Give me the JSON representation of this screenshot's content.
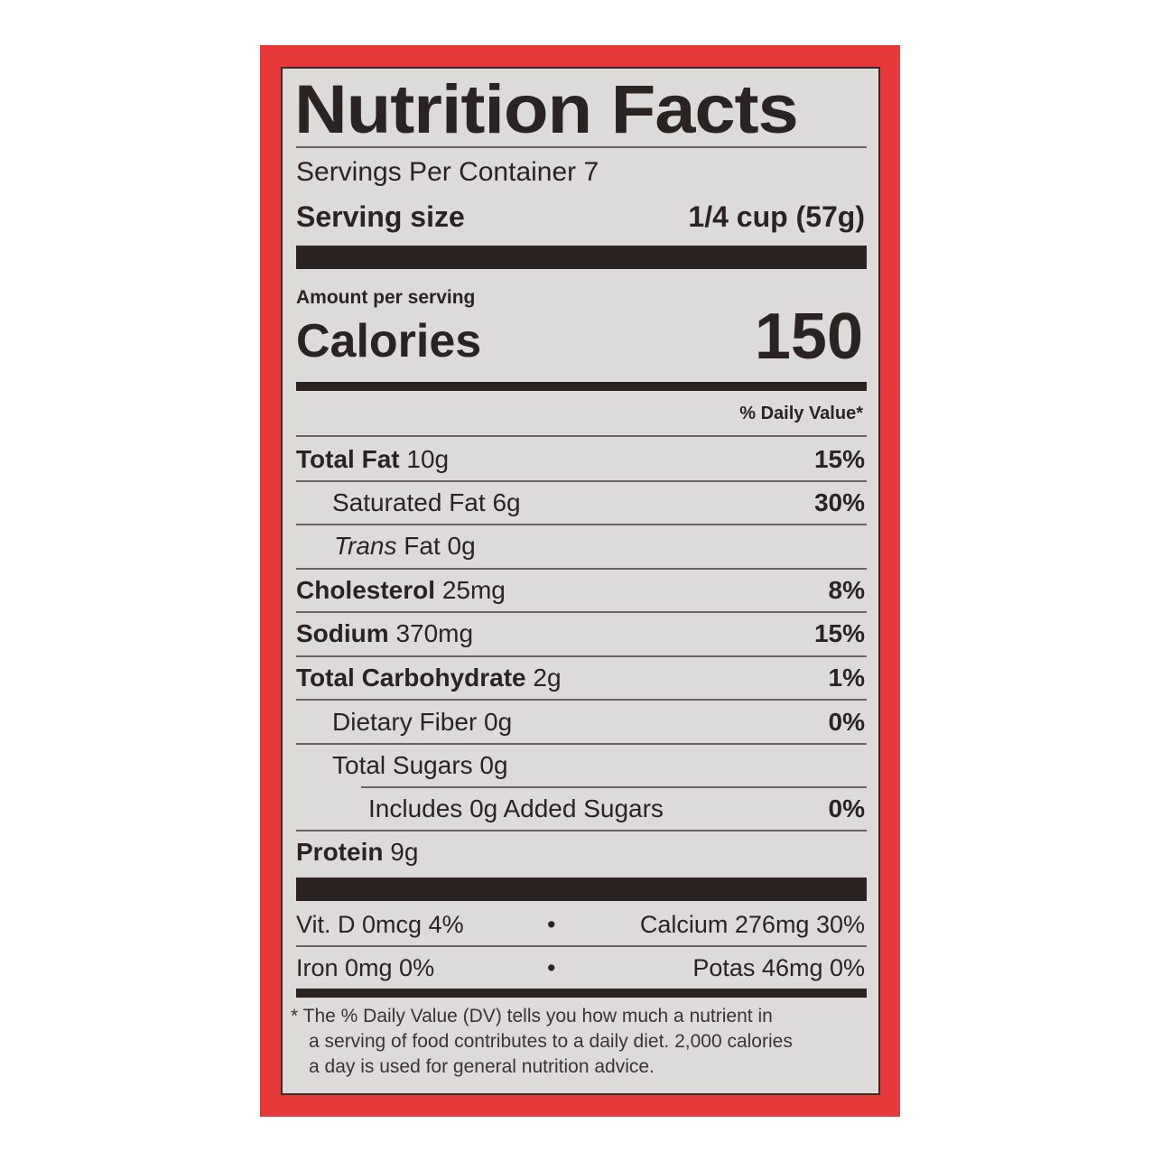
{
  "title": "Nutrition Facts",
  "servings_per_container": "Servings Per Container 7",
  "serving_size": {
    "label": "Serving size",
    "value": "1/4 cup (57g)"
  },
  "amount_per_serving": "Amount per serving",
  "calories": {
    "label": "Calories",
    "value": "150"
  },
  "daily_value_header": "% Daily Value*",
  "nutrients": [
    {
      "name": "Total Fat",
      "amount": "10g",
      "dv": "15%"
    },
    {
      "name": "Saturated Fat",
      "amount": "6g",
      "dv": "30%"
    },
    {
      "name": "Trans",
      "name_suffix": "Fat",
      "amount": "0g",
      "dv": ""
    },
    {
      "name": "Cholesterol",
      "amount": "25mg",
      "dv": "8%"
    },
    {
      "name": "Sodium",
      "amount": "370mg",
      "dv": "15%"
    },
    {
      "name": "Total Carbohydrate",
      "amount": "2g",
      "dv": "1%"
    },
    {
      "name": "Dietary Fiber",
      "amount": "0g",
      "dv": "0%"
    },
    {
      "name": "Total Sugars",
      "amount": "0g",
      "dv": ""
    },
    {
      "name": "Includes 0g Added Sugars",
      "amount": "",
      "dv": "0%"
    },
    {
      "name": "Protein",
      "amount": "9g",
      "dv": ""
    }
  ],
  "micronutrients": [
    {
      "left": "Vit. D 0mcg 4%",
      "right": "Calcium 276mg 30%"
    },
    {
      "left": "Iron 0mg 0%",
      "right": "Potas 46mg 0%"
    }
  ],
  "separator": "•",
  "footnote": [
    "* The % Daily Value (DV) tells you how much a nutrient in",
    "a serving of food contributes to a daily diet. 2,000 calories",
    "a day is used for general nutrition advice."
  ],
  "colors": {
    "border": "#e8393a",
    "label_bg": "#dddbd9",
    "ink": "#2a2321"
  }
}
